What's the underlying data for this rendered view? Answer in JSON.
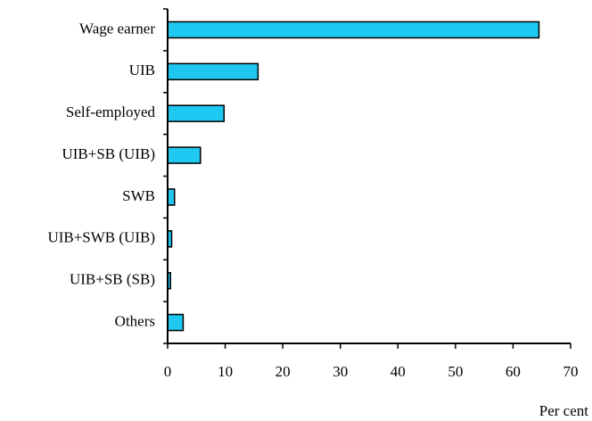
{
  "chart_data": {
    "type": "bar",
    "orientation": "horizontal",
    "categories": [
      "Wage earner",
      "UIB",
      "Self-employed",
      "UIB+SB (UIB)",
      "SWB",
      "UIB+SWB (UIB)",
      "UIB+SB (SB)",
      "Others"
    ],
    "values": [
      64.5,
      15.7,
      9.8,
      5.7,
      1.2,
      0.7,
      0.5,
      2.7
    ],
    "color": "#1ec8f0",
    "xlabel": "Per cent",
    "xlim": [
      0,
      70
    ],
    "xticks": [
      0,
      10,
      20,
      30,
      40,
      50,
      60,
      70
    ],
    "grid": false
  }
}
